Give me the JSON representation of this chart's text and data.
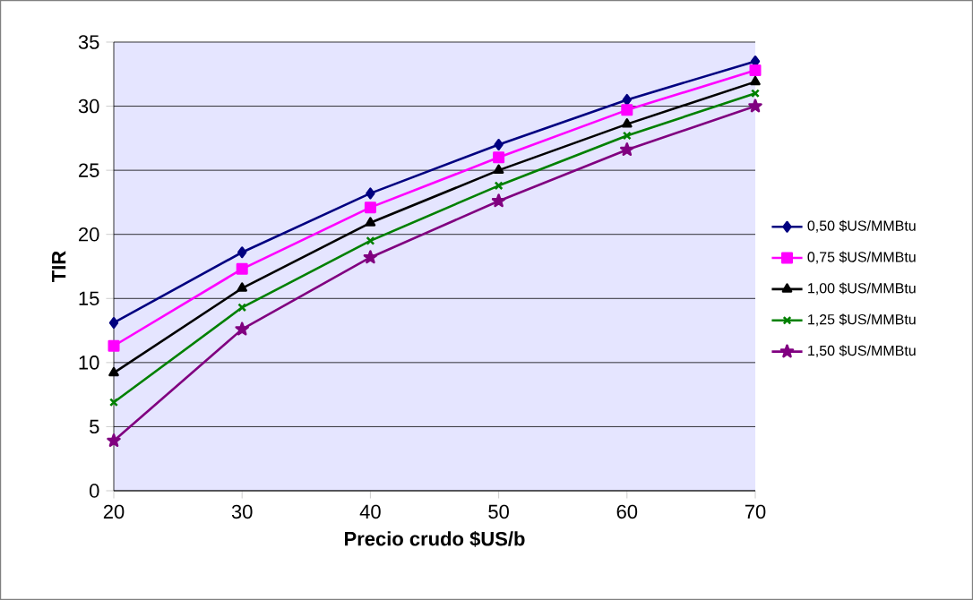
{
  "chart_data": {
    "type": "line",
    "xlabel": "Precio crudo $US/b",
    "ylabel": "TIR",
    "x": [
      20,
      30,
      40,
      50,
      60,
      70
    ],
    "series": [
      {
        "name": "0,50 $US/MMBtu",
        "color": "#000080",
        "marker": "diamond",
        "values": [
          13.1,
          18.6,
          23.2,
          27.0,
          30.5,
          33.5
        ]
      },
      {
        "name": "0,75 $US/MMBtu",
        "color": "#ff00ff",
        "marker": "square",
        "values": [
          11.3,
          17.3,
          22.1,
          26.0,
          29.7,
          32.8
        ]
      },
      {
        "name": "1,00 $US/MMBtu",
        "color": "#000000",
        "marker": "triangle",
        "values": [
          9.2,
          15.8,
          20.9,
          25.0,
          28.6,
          31.9
        ]
      },
      {
        "name": "1,25 $US/MMBtu",
        "color": "#008000",
        "marker": "cross",
        "values": [
          6.9,
          14.3,
          19.5,
          23.8,
          27.7,
          31.0
        ]
      },
      {
        "name": "1,50 $US/MMBtu",
        "color": "#800080",
        "marker": "star",
        "values": [
          3.9,
          12.6,
          18.2,
          22.6,
          26.6,
          30.0
        ]
      }
    ],
    "xlim": [
      20,
      70
    ],
    "ylim": [
      0,
      35
    ],
    "xticks": [
      20,
      30,
      40,
      50,
      60,
      70
    ],
    "yticks": [
      0,
      5,
      10,
      15,
      20,
      25,
      30,
      35
    ],
    "grid": "y",
    "legend": "right"
  }
}
